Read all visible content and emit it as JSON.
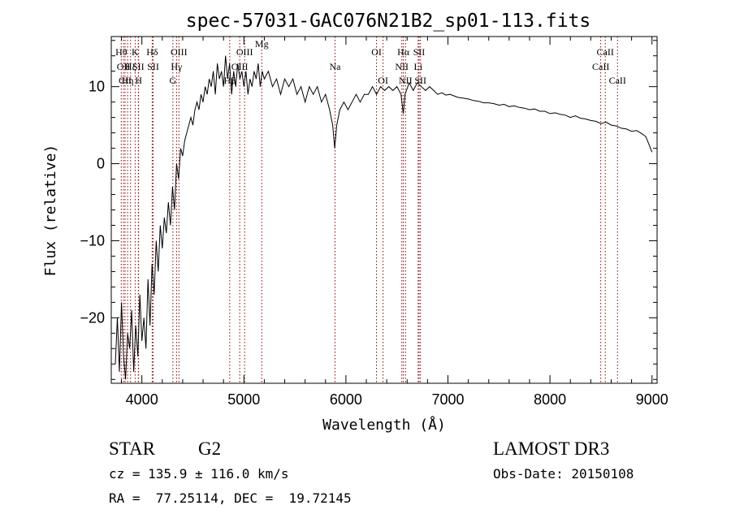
{
  "chart_data": {
    "type": "line",
    "title": "spec-57031-GAC076N21B2_sp01-113.fits",
    "xlabel": "Wavelength (Å)",
    "ylabel": "Flux (relative)",
    "xlim": [
      3700,
      9050
    ],
    "ylim": [
      -28.5,
      16.5
    ],
    "xticks": [
      4000,
      5000,
      6000,
      7000,
      8000,
      9000
    ],
    "yticks": [
      -20,
      -10,
      0,
      10
    ],
    "grid": false,
    "line_color": "#000000",
    "marker_color": "#8b0000",
    "series": [
      {
        "name": "spectrum",
        "x": [
          3740,
          3760,
          3780,
          3800,
          3820,
          3840,
          3860,
          3880,
          3900,
          3920,
          3940,
          3960,
          3980,
          4000,
          4020,
          4040,
          4060,
          4080,
          4100,
          4120,
          4140,
          4160,
          4180,
          4200,
          4220,
          4240,
          4260,
          4280,
          4300,
          4320,
          4340,
          4360,
          4380,
          4400,
          4420,
          4440,
          4460,
          4480,
          4500,
          4520,
          4540,
          4560,
          4580,
          4600,
          4620,
          4640,
          4660,
          4680,
          4700,
          4720,
          4740,
          4760,
          4780,
          4800,
          4820,
          4840,
          4860,
          4880,
          4900,
          4920,
          4940,
          4960,
          4980,
          5000,
          5020,
          5040,
          5060,
          5080,
          5100,
          5120,
          5140,
          5160,
          5180,
          5200,
          5240,
          5280,
          5320,
          5360,
          5400,
          5440,
          5480,
          5520,
          5560,
          5600,
          5640,
          5680,
          5720,
          5760,
          5800,
          5840,
          5870,
          5890,
          5910,
          5940,
          5980,
          6020,
          6060,
          6100,
          6140,
          6180,
          6220,
          6260,
          6300,
          6340,
          6380,
          6420,
          6460,
          6500,
          6540,
          6562,
          6580,
          6620,
          6660,
          6700,
          6740,
          6780,
          6820,
          6860,
          6900,
          6940,
          6980,
          7020,
          7060,
          7100,
          7150,
          7200,
          7250,
          7300,
          7350,
          7400,
          7450,
          7500,
          7550,
          7600,
          7650,
          7700,
          7750,
          7800,
          7850,
          7900,
          7950,
          8000,
          8050,
          8100,
          8150,
          8200,
          8250,
          8300,
          8350,
          8400,
          8450,
          8500,
          8550,
          8600,
          8650,
          8700,
          8750,
          8800,
          8850,
          8900,
          8940,
          8970,
          9000
        ],
        "y": [
          -26,
          -20,
          -27,
          -18,
          -25,
          -28,
          -22,
          -24,
          -19,
          -27,
          -21,
          -25,
          -17,
          -23,
          -20,
          -24,
          -15,
          -21,
          -13,
          -17,
          -10,
          -14,
          -8,
          -11,
          -7,
          -9,
          -5,
          -8,
          -3,
          -6,
          0,
          -2,
          2,
          1,
          3,
          4,
          5,
          6,
          5,
          7,
          8,
          7,
          9,
          8,
          10,
          9,
          11,
          10,
          12,
          9,
          13,
          11,
          12,
          10,
          14,
          11,
          13,
          9,
          12,
          10,
          13,
          11,
          12,
          10,
          12,
          9,
          11,
          10,
          12,
          11,
          13,
          10,
          12,
          11,
          12,
          10,
          11,
          9,
          11,
          10,
          11,
          9,
          10,
          8,
          10,
          9,
          10,
          8,
          9,
          7,
          5,
          2,
          5,
          7,
          8,
          7,
          8,
          9,
          8,
          9,
          9,
          10,
          9,
          10,
          9.5,
          10,
          9.5,
          10,
          9,
          6.5,
          9,
          10.5,
          9.5,
          10.5,
          10,
          9.5,
          10,
          9.5,
          9,
          9.2,
          8.9,
          9,
          8.8,
          8.6,
          8.5,
          8.4,
          8.2,
          8.1,
          7.9,
          7.9,
          7.8,
          7.6,
          7.7,
          7.4,
          7.5,
          7.3,
          7.2,
          7.0,
          7.1,
          6.8,
          6.8,
          6.5,
          6.6,
          6.4,
          6.3,
          6.0,
          6.2,
          5.9,
          5.8,
          5.6,
          5.5,
          5.2,
          5.4,
          5.0,
          4.9,
          4.6,
          4.5,
          4.2,
          4.3,
          3.9,
          3.5,
          2.5,
          1.5
        ]
      }
    ],
    "lines": [
      {
        "w": 3798,
        "label": "Hθ",
        "row": 1
      },
      {
        "w": 3820,
        "label": "OII",
        "row": 2
      },
      {
        "w": 3835,
        "label": "CII",
        "row": 3
      },
      {
        "w": 3860,
        "label": "Hη",
        "row": 3
      },
      {
        "w": 3889,
        "label": "Hζ",
        "row": 2
      },
      {
        "w": 3934,
        "label": "K",
        "row": 1
      },
      {
        "w": 3965,
        "label": "SII",
        "row": 2
      },
      {
        "w": 3968,
        "label": "H",
        "row": 3
      },
      {
        "w": 4101,
        "label": "Hδ",
        "row": 1
      },
      {
        "w": 4110,
        "label": "SII",
        "row": 2
      },
      {
        "w": 4304,
        "label": "G",
        "row": 3
      },
      {
        "w": 4340,
        "label": "Hγ",
        "row": 2
      },
      {
        "w": 4363,
        "label": "OIII",
        "row": 1
      },
      {
        "w": 4861,
        "label": "Hβ",
        "row": 3
      },
      {
        "w": 4959,
        "label": "OIII",
        "row": 2
      },
      {
        "w": 5007,
        "label": "OIII",
        "row": 1
      },
      {
        "w": 5175,
        "label": "Mg",
        "row": 0
      },
      {
        "w": 5893,
        "label": "Na",
        "row": 2
      },
      {
        "w": 6300,
        "label": "OI",
        "row": 1
      },
      {
        "w": 6364,
        "label": "OI",
        "row": 3
      },
      {
        "w": 6548,
        "label": "NII",
        "row": 2
      },
      {
        "w": 6563,
        "label": "Hα",
        "row": 1
      },
      {
        "w": 6584,
        "label": "NII",
        "row": 3
      },
      {
        "w": 6708,
        "label": "Li",
        "row": 2
      },
      {
        "w": 6717,
        "label": "SII",
        "row": 1
      },
      {
        "w": 6731,
        "label": "SII",
        "row": 3
      },
      {
        "w": 8498,
        "label": "CaII",
        "row": 2
      },
      {
        "w": 8542,
        "label": "CaII",
        "row": 1
      },
      {
        "w": 8662,
        "label": "CaII",
        "row": 3
      }
    ]
  },
  "info": {
    "class": "STAR",
    "subclass": "G2",
    "survey": "LAMOST DR3",
    "cz": "cz = 135.9 ± 116.0 km/s",
    "obsdate": "Obs-Date: 20150108",
    "radec": "RA =  77.25114, DEC =  19.72145"
  }
}
